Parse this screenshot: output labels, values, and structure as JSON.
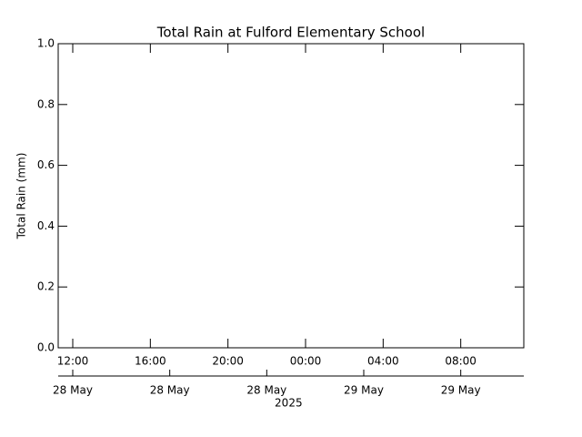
{
  "chart_data": {
    "type": "line",
    "title": "Total Rain at Fulford Elementary School",
    "ylabel": "Total Rain (mm)",
    "series": [],
    "ylim": [
      0,
      1
    ],
    "yticks": [
      {
        "value": 0,
        "label": "0.0"
      },
      {
        "value": 0.2,
        "label": "0.2"
      },
      {
        "value": 0.4,
        "label": "0.4"
      },
      {
        "value": 0.6,
        "label": "0.6"
      },
      {
        "value": 0.8,
        "label": "0.8"
      },
      {
        "value": 1,
        "label": "1.0"
      }
    ],
    "xlim": [
      "2025-05-28T11:15",
      "2025-05-29T11:15"
    ],
    "xticks": [
      {
        "value": "2025-05-28T12:00",
        "label": "12:00"
      },
      {
        "value": "2025-05-28T16:00",
        "label": "16:00"
      },
      {
        "value": "2025-05-28T20:00",
        "label": "20:00"
      },
      {
        "value": "2025-05-29T00:00",
        "label": "00:00"
      },
      {
        "value": "2025-05-29T04:00",
        "label": "04:00"
      },
      {
        "value": "2025-05-29T08:00",
        "label": "08:00"
      }
    ],
    "x2ticks": [
      {
        "value": "2025-05-28T12:00",
        "label": "28 May"
      },
      {
        "value": "2025-05-28T17:00",
        "label": "28 May"
      },
      {
        "value": "2025-05-28T22:00",
        "label": "28 May"
      },
      {
        "value": "2025-05-29T03:00",
        "label": "29 May"
      },
      {
        "value": "2025-05-29T08:00",
        "label": "29 May"
      }
    ],
    "year": "2025",
    "grid": false
  }
}
